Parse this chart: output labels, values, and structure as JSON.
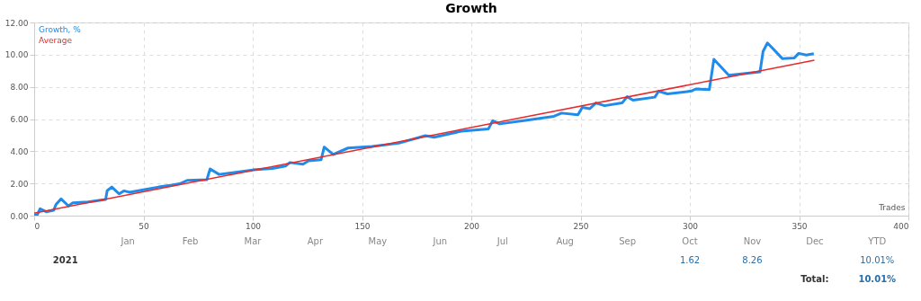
{
  "chart_data": [
    {
      "type": "line",
      "title": "Growth",
      "xlabel": "Trades",
      "xlim": [
        0,
        400
      ],
      "xticks": [
        0,
        50,
        100,
        150,
        200,
        250,
        300,
        350,
        400
      ],
      "ylim": [
        0,
        12
      ],
      "yticks": [
        {
          "value": 0,
          "label": "0.00"
        },
        {
          "value": 2,
          "label": "2.00"
        },
        {
          "value": 4,
          "label": "4.00"
        },
        {
          "value": 6,
          "label": "6.00"
        },
        {
          "value": 8,
          "label": "8.00"
        },
        {
          "value": 10,
          "label": "10.00"
        },
        {
          "value": 12,
          "label": "12.00"
        }
      ],
      "grid": true,
      "legend": "top left",
      "marker": "none",
      "line_style": "solid",
      "series": [
        {
          "name": "Growth, %",
          "color": "#1f8ceb",
          "x": [
            0,
            1.4,
            2.7,
            5.5,
            8.9,
            10,
            12.3,
            15.7,
            17.7,
            24.6,
            32.7,
            33.4,
            35.5,
            38.9,
            41,
            43.7,
            50,
            57,
            63,
            67,
            70,
            79,
            80.5,
            84.6,
            90,
            100,
            109,
            115,
            117,
            123,
            125.5,
            131.3,
            132.7,
            136.8,
            143.6,
            154.5,
            166.8,
            179,
            183,
            195.5,
            207.8,
            209.8,
            213,
            225.5,
            237.8,
            241.3,
            248.8,
            250.8,
            254.2,
            257,
            261,
            269,
            271.3,
            274,
            284,
            285.7,
            289.8,
            300.7,
            302.7,
            308.9,
            311,
            317.8,
            332.1,
            333.5,
            335.5,
            342.3,
            347.8,
            349.8,
            353.3,
            356.7
          ],
          "values": [
            0.05,
            0.05,
            0.43,
            0.24,
            0.33,
            0.7,
            1.04,
            0.6,
            0.8,
            0.85,
            1.0,
            1.55,
            1.78,
            1.35,
            1.54,
            1.45,
            1.6,
            1.78,
            1.9,
            2.0,
            2.19,
            2.23,
            2.9,
            2.56,
            2.65,
            2.84,
            2.93,
            3.08,
            3.3,
            3.2,
            3.4,
            3.48,
            4.26,
            3.8,
            4.2,
            4.3,
            4.5,
            4.97,
            4.87,
            5.25,
            5.38,
            5.9,
            5.7,
            5.93,
            6.17,
            6.37,
            6.26,
            6.73,
            6.64,
            7.0,
            6.83,
            7.0,
            7.39,
            7.17,
            7.36,
            7.73,
            7.56,
            7.74,
            7.87,
            7.83,
            9.71,
            8.72,
            8.93,
            10.2,
            10.73,
            9.76,
            9.8,
            10.08,
            9.98,
            10.06
          ]
        },
        {
          "name": "Average",
          "color": "#e8292a",
          "type": "line",
          "x": [
            0,
            357
          ],
          "values": [
            0.15,
            9.65
          ]
        }
      ]
    },
    {
      "type": "other",
      "categories": [
        "Jan",
        "Feb",
        "Mar",
        "Apr",
        "May",
        "Jun",
        "Jul",
        "Aug",
        "Sep",
        "Oct",
        "Nov",
        "Dec",
        "YTD"
      ],
      "y_categories": [
        "2021"
      ],
      "cell_labels": [
        [
          null,
          null,
          null,
          null,
          null,
          null,
          null,
          null,
          null,
          "1.62",
          "8.26",
          null,
          "10.01%"
        ]
      ],
      "annotations": [
        "Total:",
        "10.01%"
      ]
    }
  ]
}
